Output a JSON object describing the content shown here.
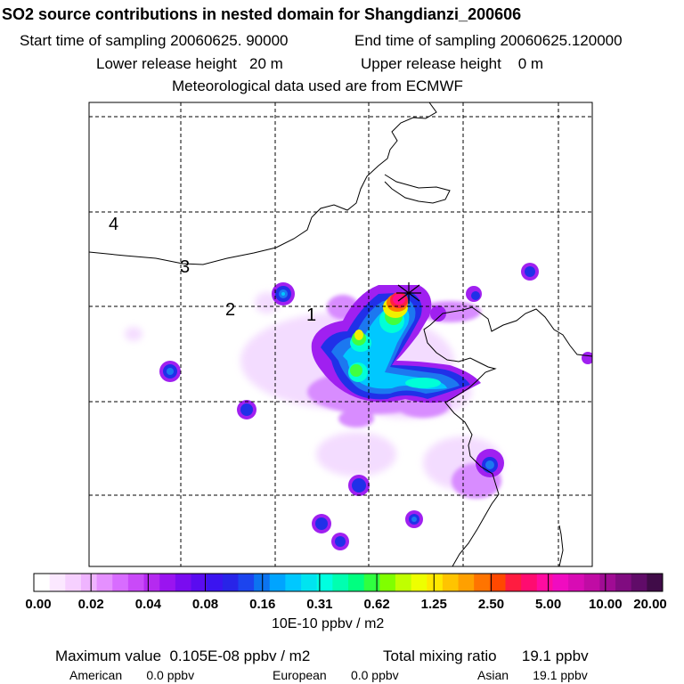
{
  "title": "SO2 source contributions in nested domain for Shangdianzi_200606",
  "start_time": "Start time of sampling 20060625. 90000",
  "end_time": "End time of sampling 20060625.120000",
  "lower_release": "Lower release height   20 m",
  "upper_release": "Upper release height    0 m",
  "met_data": "Meteorological data used are from ECMWF",
  "colorbar": {
    "unit_label": "10E-10 ppbv / m2",
    "ticks": [
      "0.00",
      "0.02",
      "0.04",
      "0.08",
      "0.16",
      "0.31",
      "0.62",
      "1.25",
      "2.50",
      "5.00",
      "10.00",
      "20.00"
    ],
    "colors": [
      "#ffffff",
      "#fbe8ff",
      "#f6d0ff",
      "#efb4ff",
      "#e590ff",
      "#d86cff",
      "#c94af8",
      "#b52af0",
      "#9a14f0",
      "#7a0cf0",
      "#5a0cf0",
      "#3b14f0",
      "#2824e8",
      "#1c44ee",
      "#0c74f0",
      "#00a4ff",
      "#00c8ff",
      "#00e4f0",
      "#00ffe0",
      "#00ffb0",
      "#00ff80",
      "#30ff40",
      "#80ff00",
      "#c0ff00",
      "#eeff00",
      "#ffe800",
      "#ffc400",
      "#ffa000",
      "#ff7400",
      "#ff4800",
      "#ff1c40",
      "#ff0c70",
      "#ff0ca0",
      "#f00cc0",
      "#d80cb4",
      "#c00ca4",
      "#a00c94",
      "#800c80",
      "#600c68",
      "#400c48"
    ]
  },
  "chart_data": {
    "type": "heatmap",
    "title": "SO2 source contributions in nested domain for Shangdianzi_200606",
    "units": "10E-10 ppbv / m2",
    "scale": "logarithmic (doubling per major tick)",
    "color_levels": [
      0.0,
      0.02,
      0.04,
      0.08,
      0.16,
      0.31,
      0.62,
      1.25,
      2.5,
      5.0,
      10.0,
      20.0
    ],
    "grid": true,
    "grid_labels": [
      "1",
      "2",
      "3",
      "4"
    ],
    "receptor_marker": "star",
    "hotspots": [
      {
        "description": "receptor area (Shangdianzi), red/magenta core",
        "max_level": 10.0
      },
      {
        "description": "yellow-green plume south-west of receptor",
        "max_level": 1.25
      },
      {
        "description": "cyan-blue band across central plain",
        "max_level": 0.31
      },
      {
        "description": "isolated blue/purple cells elsewhere",
        "max_level": 0.08
      }
    ],
    "maximum_value": "0.105E-08 ppbv / m2",
    "total_mixing_ratio": "19.1 ppbv",
    "regions": [
      {
        "name": "American",
        "value": "0.0 ppbv"
      },
      {
        "name": "European",
        "value": "0.0 ppbv"
      },
      {
        "name": "Asian",
        "value": "19.1 ppbv"
      }
    ]
  },
  "summary": {
    "max_value": "Maximum value  0.105E-08 ppbv / m2",
    "total": "Total mixing ratio      19.1 ppbv",
    "american": "American       0.0 ppbv",
    "european": "European       0.0 ppbv",
    "asian": "Asian       19.1 ppbv"
  }
}
